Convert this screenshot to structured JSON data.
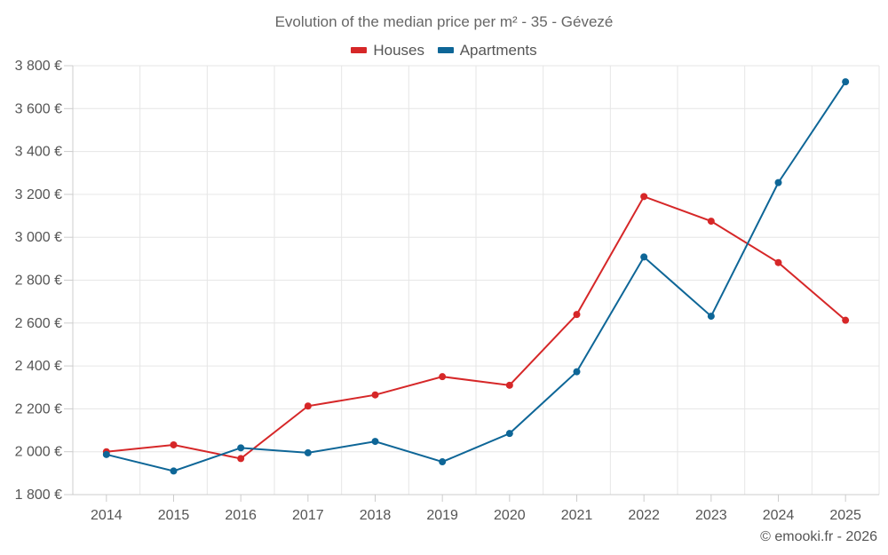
{
  "chart_data": {
    "type": "line",
    "title": "Evolution of the median price per m² - 35 - Gévezé",
    "categories": [
      "2014",
      "2015",
      "2016",
      "2017",
      "2018",
      "2019",
      "2020",
      "2021",
      "2022",
      "2023",
      "2024",
      "2025"
    ],
    "series": [
      {
        "name": "Houses",
        "color": "#d62728",
        "values": [
          2000,
          2032,
          1968,
          2213,
          2265,
          2350,
          2310,
          2640,
          3190,
          3075,
          2882,
          2613
        ]
      },
      {
        "name": "Apartments",
        "color": "#0e6697",
        "values": [
          1987,
          1910,
          2018,
          1995,
          2048,
          1953,
          2085,
          2373,
          2908,
          2632,
          3255,
          3725
        ]
      }
    ],
    "ylim": [
      1800,
      3800
    ],
    "yticks": [
      1800,
      2000,
      2200,
      2400,
      2600,
      2800,
      3000,
      3200,
      3400,
      3600,
      3800
    ],
    "ytick_labels": [
      "1 800 €",
      "2 000 €",
      "2 200 €",
      "2 400 €",
      "2 600 €",
      "2 800 €",
      "3 000 €",
      "3 200 €",
      "3 400 €",
      "3 600 €",
      "3 800 €"
    ],
    "xlabel": "",
    "ylabel": "",
    "grid": true,
    "legend_position": "top-center"
  },
  "credit": "© emooki.fr - 2026"
}
